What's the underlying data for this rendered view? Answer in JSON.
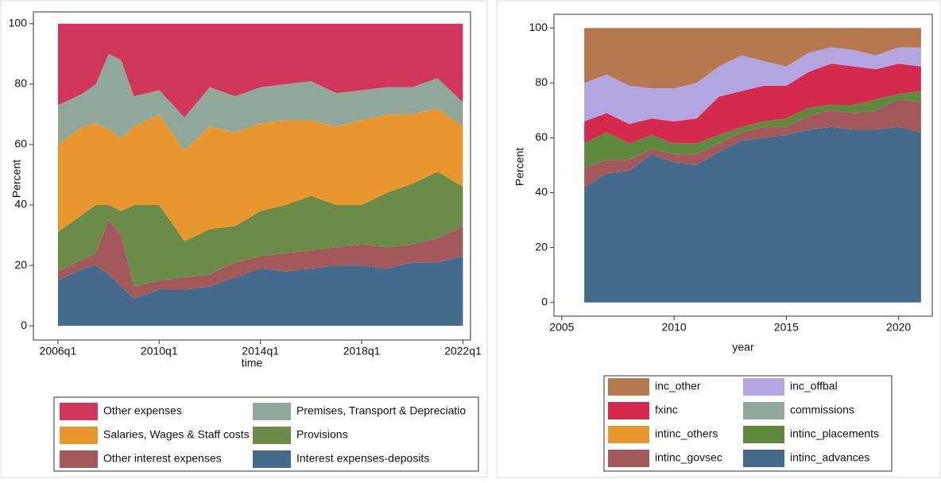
{
  "chart_data": [
    {
      "type": "stacked-area",
      "xlabel": "time",
      "ylabel": "Percent",
      "x": [
        2006,
        2007,
        2007.5,
        2008,
        2008.5,
        2009,
        2010,
        2011,
        2012,
        2013,
        2014,
        2015,
        2016,
        2017,
        2018,
        2019,
        2020,
        2021,
        2022
      ],
      "xlim": [
        2005.03,
        2022.3
      ],
      "xticks": [
        {
          "value": 2006,
          "label": "2006q1"
        },
        {
          "value": 2010,
          "label": "2010q1"
        },
        {
          "value": 2014,
          "label": "2014q1"
        },
        {
          "value": 2018,
          "label": "2018q1"
        },
        {
          "value": 2022,
          "label": "2022q1"
        }
      ],
      "ylim": [
        -4.7,
        103.9
      ],
      "yticks": [
        0,
        20,
        40,
        60,
        80,
        100
      ],
      "legend": "bottom",
      "series": [
        {
          "name": "Interest expenses-deposits",
          "color": "#456b8c",
          "values": [
            15,
            19,
            20,
            17,
            13,
            9,
            12,
            12,
            13,
            16,
            19,
            18,
            19,
            20,
            20,
            19,
            21,
            21,
            23
          ]
        },
        {
          "name": "Other interest expenses",
          "color": "#a3585a",
          "values": [
            3,
            3,
            4,
            18,
            17,
            4,
            3,
            4,
            4,
            5,
            4,
            6,
            6,
            6,
            7,
            7,
            6,
            8,
            10
          ]
        },
        {
          "name": "Provisions",
          "color": "#6a8c48",
          "values": [
            13,
            15,
            16,
            5,
            8,
            27,
            25,
            12,
            15,
            12,
            15,
            16,
            18,
            14,
            13,
            18,
            20,
            22,
            13
          ]
        },
        {
          "name": "Salaries, Wages & Staff costs",
          "color": "#e8972e",
          "values": [
            29,
            29,
            27,
            25,
            24,
            26,
            30,
            30,
            34,
            31,
            29,
            28,
            25,
            26,
            28,
            26,
            23,
            21,
            20
          ]
        },
        {
          "name": "Premises, Transport & Depreciatio",
          "color": "#8fa89a",
          "values": [
            13,
            11,
            13,
            25,
            26,
            10,
            8,
            11,
            13,
            12,
            12,
            12,
            13,
            11,
            10,
            9,
            9,
            10,
            8
          ]
        },
        {
          "name": "Other expenses",
          "color": "#d1365a",
          "values": [
            27,
            23,
            20,
            10,
            12,
            24,
            22,
            31,
            21,
            24,
            21,
            20,
            19,
            23,
            22,
            21,
            21,
            18,
            26
          ]
        }
      ]
    },
    {
      "type": "stacked-area",
      "xlabel": "year",
      "ylabel": "Percent",
      "x": [
        2006,
        2007,
        2008,
        2009,
        2010,
        2011,
        2012,
        2013,
        2014,
        2015,
        2016,
        2017,
        2018,
        2019,
        2020,
        2021
      ],
      "xlim": [
        2004.65,
        2021.5
      ],
      "xticks": [
        2005,
        2010,
        2015,
        2020
      ],
      "ylim": [
        -5,
        105
      ],
      "yticks": [
        0,
        20,
        40,
        60,
        80,
        100
      ],
      "legend": "bottom",
      "series": [
        {
          "name": "intinc_advances",
          "color": "#456b8c",
          "values": [
            42,
            47,
            48,
            54,
            51,
            50,
            55,
            59,
            60,
            61,
            63,
            64,
            63,
            63,
            64,
            62
          ]
        },
        {
          "name": "intinc_govsec",
          "color": "#a3585a",
          "values": [
            7,
            5,
            4,
            2,
            3,
            4,
            3,
            3,
            4,
            3,
            5,
            6,
            6,
            7,
            10,
            11
          ]
        },
        {
          "name": "intinc_placements",
          "color": "#5f8a3e",
          "values": [
            9,
            10,
            6,
            5,
            4,
            4,
            3,
            2,
            2,
            3,
            3,
            2,
            3,
            4,
            2,
            4
          ]
        },
        {
          "name": "intinc_others",
          "color": "#e8972e",
          "values": [
            0,
            0,
            0,
            0,
            0,
            0,
            0,
            0,
            0,
            0,
            0,
            0,
            0,
            0,
            0,
            0
          ]
        },
        {
          "name": "commissions",
          "color": "#8fa89a",
          "values": [
            0,
            0,
            0,
            0,
            0,
            0,
            0,
            0,
            0,
            0,
            0,
            0,
            0,
            0,
            0,
            0
          ]
        },
        {
          "name": "fxinc",
          "color": "#d42a4e",
          "values": [
            8,
            7,
            7,
            6,
            8,
            9,
            14,
            13,
            13,
            12,
            13,
            15,
            14,
            11,
            11,
            9
          ]
        },
        {
          "name": "inc_offbal",
          "color": "#b3a5e0",
          "values": [
            14,
            14,
            14,
            11,
            12,
            13,
            11,
            13,
            9,
            7,
            7,
            6,
            6,
            5,
            6,
            7
          ]
        },
        {
          "name": "inc_other",
          "color": "#b5784f",
          "values": [
            20,
            17,
            21,
            22,
            22,
            20,
            14,
            10,
            12,
            14,
            9,
            7,
            8,
            10,
            7,
            7
          ]
        }
      ]
    }
  ]
}
